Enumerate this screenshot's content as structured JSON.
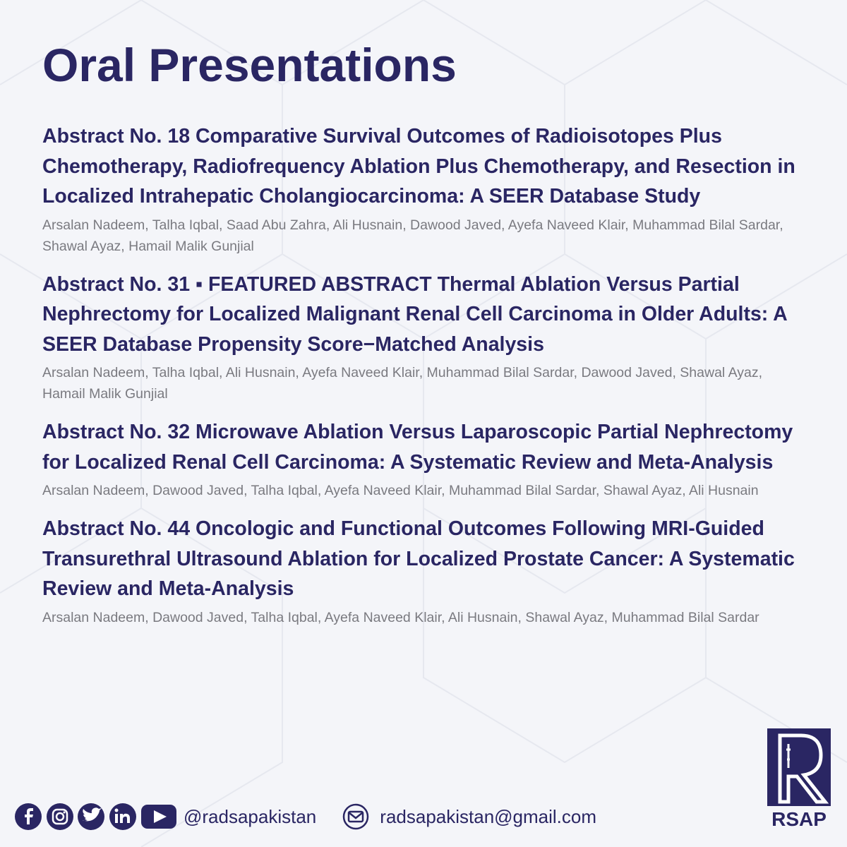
{
  "header": {
    "title": "Oral Presentations"
  },
  "abstracts": [
    {
      "title": "Abstract No. 18 Comparative Survival Outcomes of Radioisotopes Plus Chemotherapy, Radiofrequency Ablation Plus Chemotherapy, and Resection in Localized Intrahepatic Cholangiocarcinoma: A SEER Database Study",
      "authors": "Arsalan Nadeem, Talha Iqbal, Saad Abu Zahra, Ali Husnain, Dawood Javed, Ayefa Naveed Klair, Muhammad Bilal Sardar, Shawal Ayaz, Hamail Malik Gunjial"
    },
    {
      "title": "Abstract No. 31 ▪ FEATURED ABSTRACT Thermal Ablation Versus Partial Nephrectomy for Localized Malignant Renal Cell Carcinoma in Older Adults: A SEER Database Propensity Score−Matched Analysis",
      "authors": "Arsalan Nadeem, Talha Iqbal, Ali Husnain, Ayefa Naveed Klair, Muhammad Bilal Sardar, Dawood Javed, Shawal Ayaz, Hamail Malik Gunjial"
    },
    {
      "title": "Abstract No. 32 Microwave Ablation Versus Laparoscopic Partial Nephrectomy for Localized Renal Cell Carcinoma: A Systematic Review and Meta-Analysis",
      "authors": "Arsalan Nadeem, Dawood Javed, Talha Iqbal, Ayefa Naveed Klair, Muhammad Bilal Sardar, Shawal Ayaz, Ali Husnain"
    },
    {
      "title": "Abstract No. 44 Oncologic and Functional Outcomes Following MRI-Guided Transurethral Ultrasound Ablation for Localized Prostate Cancer: A Systematic Review and Meta-Analysis",
      "authors": "Arsalan Nadeem, Dawood Javed, Talha Iqbal, Ayefa Naveed Klair, Ali Husnain, Shawal Ayaz, Muhammad Bilal Sardar"
    }
  ],
  "footer": {
    "handle": "@radsapakistan",
    "email": "radsapakistan@gmail.com"
  },
  "logo": {
    "text": "RSAP"
  }
}
